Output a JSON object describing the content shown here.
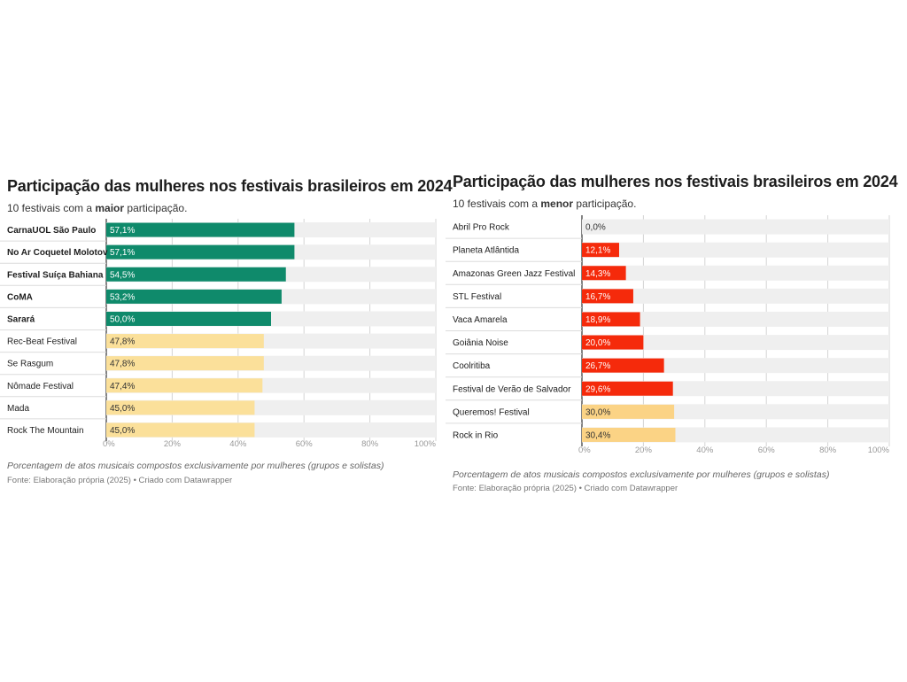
{
  "charts": [
    {
      "title": "Participação das mulheres nos festivais brasileiros em 2024",
      "subtitle_pre": "10 festivais com a ",
      "subtitle_bold": "maior",
      "subtitle_post": " participação.",
      "note": "Porcentagem de atos musicais compostos exclusivamente por mulheres (grupos e solistas)",
      "source": "Fonte: Elaboração própria (2025) • Criado com Datawrapper"
    },
    {
      "title": "Participação das mulheres nos festivais brasileiros em 2024",
      "subtitle_pre": "10 festivais com a ",
      "subtitle_bold": "menor",
      "subtitle_post": " participação.",
      "note": "Porcentagem de atos musicais compostos exclusivamente por mulheres (grupos e solistas)",
      "source": "Fonte: Elaboração própria (2025) • Criado com Datawrapper"
    }
  ],
  "chart_data": [
    {
      "type": "bar",
      "orientation": "horizontal",
      "categories": [
        "CarnaUOL São Paulo",
        "No Ar Coquetel Molotov",
        "Festival Suíça Bahiana",
        "CoMA",
        "Sarará",
        "Rec-Beat Festival",
        "Se Rasgum",
        "Nômade Festival",
        "Mada",
        "Rock The Mountain"
      ],
      "values": [
        57.1,
        57.1,
        54.5,
        53.2,
        50.0,
        47.8,
        47.8,
        47.4,
        45.0,
        45.0
      ],
      "value_labels": [
        "57,1%",
        "57,1%",
        "54,5%",
        "53,2%",
        "50,0%",
        "47,8%",
        "47,8%",
        "47,4%",
        "45,0%",
        "45,0%"
      ],
      "bold_categories": [
        true,
        true,
        true,
        true,
        true,
        false,
        false,
        false,
        false,
        false
      ],
      "bar_colors": [
        "#0f8a6b",
        "#0f8a6b",
        "#0f8a6b",
        "#0f8a6b",
        "#0f8a6b",
        "#fbe09a",
        "#fbe09a",
        "#fbe09a",
        "#fbe09a",
        "#fbe09a"
      ],
      "label_colors": [
        "#ffffff",
        "#ffffff",
        "#ffffff",
        "#ffffff",
        "#ffffff",
        "#333333",
        "#333333",
        "#333333",
        "#333333",
        "#333333"
      ],
      "xlim": [
        0,
        100
      ],
      "ticks": [
        0,
        20,
        40,
        60,
        80,
        100
      ],
      "tick_labels": [
        "0%",
        "20%",
        "40%",
        "60%",
        "80%",
        "100%"
      ],
      "grid": true
    },
    {
      "type": "bar",
      "orientation": "horizontal",
      "categories": [
        "Abril Pro Rock",
        "Planeta Atlântida",
        "Amazonas Green Jazz Festival",
        "STL Festival",
        "Vaca Amarela",
        "Goiânia Noise",
        "Coolritiba",
        "Festival de Verão de Salvador",
        "Queremos! Festival",
        "Rock in Rio"
      ],
      "values": [
        0.0,
        12.1,
        14.3,
        16.7,
        18.9,
        20.0,
        26.7,
        29.6,
        30.0,
        30.4
      ],
      "value_labels": [
        "0,0%",
        "12,1%",
        "14,3%",
        "16,7%",
        "18,9%",
        "20,0%",
        "26,7%",
        "29,6%",
        "30,0%",
        "30,4%"
      ],
      "bold_categories": [
        false,
        false,
        false,
        false,
        false,
        false,
        false,
        false,
        false,
        false
      ],
      "bar_colors": [
        "#f52a0b",
        "#f52a0b",
        "#f52a0b",
        "#f52a0b",
        "#f52a0b",
        "#f52a0b",
        "#f52a0b",
        "#f52a0b",
        "#fbd385",
        "#fbd385"
      ],
      "label_colors": [
        "#333333",
        "#ffffff",
        "#ffffff",
        "#ffffff",
        "#ffffff",
        "#ffffff",
        "#ffffff",
        "#ffffff",
        "#333333",
        "#333333"
      ],
      "xlim": [
        0,
        100
      ],
      "ticks": [
        0,
        20,
        40,
        60,
        80,
        100
      ],
      "tick_labels": [
        "0%",
        "20%",
        "40%",
        "60%",
        "80%",
        "100%"
      ],
      "grid": true
    }
  ]
}
